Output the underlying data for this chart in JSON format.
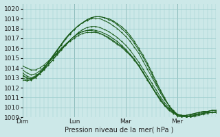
{
  "xlabel": "Pression niveau de la mer( hPa )",
  "bg_color": "#cce8e8",
  "grid_color": "#99cccc",
  "line_color": "#1a5c1a",
  "ylim": [
    1009,
    1020.5
  ],
  "yticks": [
    1009,
    1010,
    1011,
    1012,
    1013,
    1014,
    1015,
    1016,
    1017,
    1018,
    1019,
    1020
  ],
  "day_labels": [
    "Dim",
    "Lun",
    "Mar",
    "Mer"
  ],
  "day_positions": [
    0,
    72,
    144,
    216
  ],
  "total_hours": 270,
  "figsize": [
    3.2,
    2.0
  ],
  "dpi": 100,
  "series": [
    {
      "x": [
        0,
        6,
        12,
        18,
        24,
        30,
        36,
        42,
        48,
        54,
        60,
        66,
        72,
        78,
        84,
        90,
        96,
        102,
        108,
        114,
        120,
        126,
        132,
        138,
        144,
        150,
        156,
        162,
        168,
        174,
        180,
        186,
        192,
        198,
        204,
        210,
        216,
        222,
        228,
        234,
        240,
        246,
        252,
        258,
        264,
        270
      ],
      "y": [
        1013.5,
        1013.2,
        1013.0,
        1013.2,
        1013.5,
        1013.9,
        1014.3,
        1014.8,
        1015.3,
        1015.8,
        1016.3,
        1016.8,
        1017.2,
        1017.6,
        1017.9,
        1018.1,
        1018.2,
        1018.2,
        1018.1,
        1017.9,
        1017.7,
        1017.4,
        1017.1,
        1016.7,
        1016.3,
        1015.8,
        1015.2,
        1014.6,
        1013.9,
        1013.2,
        1012.5,
        1011.8,
        1011.1,
        1010.5,
        1010.0,
        1009.6,
        1009.3,
        1009.2,
        1009.1,
        1009.1,
        1009.2,
        1009.3,
        1009.4,
        1009.5,
        1009.5,
        1009.5
      ]
    },
    {
      "x": [
        0,
        6,
        12,
        18,
        24,
        30,
        36,
        42,
        48,
        54,
        60,
        66,
        72,
        78,
        84,
        90,
        96,
        102,
        108,
        114,
        120,
        126,
        132,
        138,
        144,
        150,
        156,
        162,
        168,
        174,
        180,
        186,
        192,
        198,
        204,
        210,
        216,
        222,
        228,
        234,
        240,
        246,
        252,
        258,
        264,
        270
      ],
      "y": [
        1013.0,
        1012.8,
        1012.8,
        1013.0,
        1013.4,
        1013.9,
        1014.5,
        1015.1,
        1015.7,
        1016.3,
        1016.9,
        1017.4,
        1017.9,
        1018.3,
        1018.6,
        1018.9,
        1019.1,
        1019.2,
        1019.2,
        1019.1,
        1019.0,
        1018.8,
        1018.5,
        1018.2,
        1017.8,
        1017.3,
        1016.7,
        1016.0,
        1015.3,
        1014.5,
        1013.6,
        1012.7,
        1011.8,
        1011.0,
        1010.2,
        1009.6,
        1009.1,
        1009.0,
        1009.0,
        1009.1,
        1009.2,
        1009.3,
        1009.4,
        1009.5,
        1009.5,
        1009.5
      ]
    },
    {
      "x": [
        0,
        6,
        12,
        18,
        24,
        30,
        36,
        42,
        48,
        54,
        60,
        66,
        72,
        78,
        84,
        90,
        96,
        102,
        108,
        114,
        120,
        126,
        132,
        138,
        144,
        150,
        156,
        162,
        168,
        174,
        180,
        186,
        192,
        198,
        204,
        210,
        216,
        222,
        228,
        234,
        240,
        246,
        252,
        258,
        264,
        270
      ],
      "y": [
        1013.3,
        1013.0,
        1012.9,
        1013.1,
        1013.4,
        1013.8,
        1014.3,
        1014.8,
        1015.4,
        1015.9,
        1016.4,
        1016.8,
        1017.2,
        1017.5,
        1017.7,
        1017.8,
        1017.8,
        1017.7,
        1017.5,
        1017.3,
        1017.0,
        1016.7,
        1016.4,
        1016.1,
        1015.7,
        1015.3,
        1014.8,
        1014.2,
        1013.5,
        1012.8,
        1012.1,
        1011.4,
        1010.8,
        1010.2,
        1009.8,
        1009.5,
        1009.3,
        1009.2,
        1009.2,
        1009.3,
        1009.4,
        1009.5,
        1009.6,
        1009.6,
        1009.7,
        1009.7
      ]
    },
    {
      "x": [
        0,
        6,
        12,
        18,
        24,
        30,
        36,
        42,
        48,
        54,
        60,
        66,
        72,
        78,
        84,
        90,
        96,
        102,
        108,
        114,
        120,
        126,
        132,
        138,
        144,
        150,
        156,
        162,
        168,
        174,
        180,
        186,
        192,
        198,
        204,
        210,
        216,
        222,
        228,
        234,
        240,
        246,
        252,
        258,
        264,
        270
      ],
      "y": [
        1013.8,
        1013.5,
        1013.3,
        1013.4,
        1013.7,
        1014.1,
        1014.5,
        1015.0,
        1015.5,
        1016.0,
        1016.4,
        1016.8,
        1017.2,
        1017.5,
        1017.7,
        1017.8,
        1017.9,
        1017.8,
        1017.7,
        1017.5,
        1017.3,
        1017.0,
        1016.7,
        1016.3,
        1015.9,
        1015.4,
        1014.9,
        1014.3,
        1013.6,
        1012.9,
        1012.2,
        1011.5,
        1010.9,
        1010.3,
        1009.9,
        1009.5,
        1009.3,
        1009.2,
        1009.2,
        1009.3,
        1009.4,
        1009.5,
        1009.6,
        1009.6,
        1009.7,
        1009.7
      ]
    },
    {
      "x": [
        0,
        6,
        12,
        18,
        24,
        30,
        36,
        42,
        48,
        54,
        60,
        66,
        72,
        78,
        84,
        90,
        96,
        102,
        108,
        114,
        120,
        126,
        132,
        138,
        144,
        150,
        156,
        162,
        168,
        174,
        180,
        186,
        192,
        198,
        204,
        210,
        216,
        222,
        228,
        234,
        240,
        246,
        252,
        258,
        264,
        270
      ],
      "y": [
        1013.2,
        1013.0,
        1012.9,
        1013.1,
        1013.5,
        1014.0,
        1014.6,
        1015.2,
        1015.8,
        1016.4,
        1017.0,
        1017.5,
        1017.9,
        1018.3,
        1018.6,
        1018.9,
        1019.1,
        1019.2,
        1019.2,
        1019.1,
        1018.9,
        1018.7,
        1018.4,
        1018.0,
        1017.6,
        1017.1,
        1016.5,
        1015.8,
        1015.1,
        1014.3,
        1013.4,
        1012.5,
        1011.7,
        1010.9,
        1010.2,
        1009.7,
        1009.3,
        1009.1,
        1009.0,
        1009.1,
        1009.2,
        1009.3,
        1009.4,
        1009.5,
        1009.5,
        1009.6
      ]
    },
    {
      "x": [
        0,
        6,
        12,
        18,
        24,
        30,
        36,
        42,
        48,
        54,
        60,
        66,
        72,
        78,
        84,
        90,
        96,
        102,
        108,
        114,
        120,
        126,
        132,
        138,
        144,
        150,
        156,
        162,
        168,
        174,
        180,
        186,
        192,
        198,
        204,
        210,
        216,
        222,
        228,
        234,
        240,
        246,
        252,
        258,
        264,
        270
      ],
      "y": [
        1012.8,
        1012.7,
        1012.8,
        1013.1,
        1013.5,
        1014.0,
        1014.6,
        1015.2,
        1015.8,
        1016.4,
        1017.0,
        1017.5,
        1017.9,
        1018.3,
        1018.6,
        1018.8,
        1019.0,
        1019.0,
        1019.0,
        1018.8,
        1018.6,
        1018.3,
        1018.0,
        1017.6,
        1017.2,
        1016.7,
        1016.1,
        1015.5,
        1014.7,
        1013.9,
        1013.1,
        1012.3,
        1011.5,
        1010.8,
        1010.2,
        1009.7,
        1009.3,
        1009.1,
        1009.0,
        1009.0,
        1009.1,
        1009.2,
        1009.3,
        1009.4,
        1009.5,
        1009.5
      ]
    },
    {
      "x": [
        0,
        6,
        12,
        18,
        24,
        30,
        36,
        42,
        48,
        54,
        60,
        66,
        72,
        78,
        84,
        90,
        96,
        102,
        108,
        114,
        120,
        126,
        132,
        138,
        144,
        150,
        156,
        162,
        168,
        174,
        180,
        186,
        192,
        198,
        204,
        210,
        216,
        222,
        228,
        234,
        240,
        246,
        252,
        258,
        264,
        270
      ],
      "y": [
        1014.2,
        1014.0,
        1013.8,
        1013.8,
        1014.0,
        1014.3,
        1014.7,
        1015.1,
        1015.5,
        1015.9,
        1016.3,
        1016.7,
        1017.0,
        1017.3,
        1017.5,
        1017.6,
        1017.6,
        1017.6,
        1017.5,
        1017.3,
        1017.1,
        1016.8,
        1016.5,
        1016.2,
        1015.8,
        1015.3,
        1014.8,
        1014.2,
        1013.5,
        1012.8,
        1012.1,
        1011.4,
        1010.7,
        1010.2,
        1009.7,
        1009.4,
        1009.2,
        1009.1,
        1009.1,
        1009.2,
        1009.3,
        1009.4,
        1009.5,
        1009.6,
        1009.7,
        1009.7
      ]
    }
  ]
}
